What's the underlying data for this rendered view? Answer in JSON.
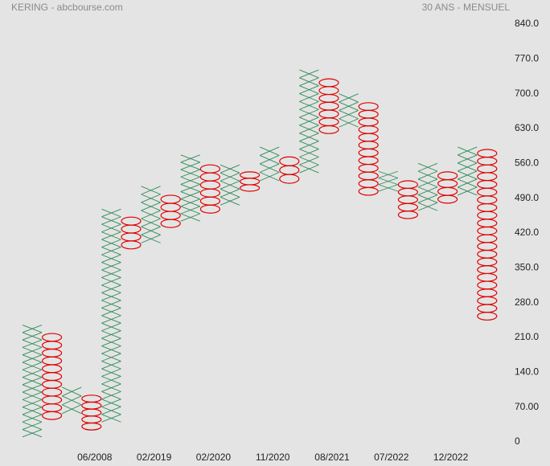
{
  "chart_data": {
    "type": "point-and-figure",
    "title": "KERING - abcbourse.com",
    "subtitle": "30 ANS - MENSUEL",
    "x_color": "#2e8b57",
    "o_color": "#e00000",
    "ylim": [
      0,
      840
    ],
    "yticks": [
      {
        "value": 840,
        "label": "840.0"
      },
      {
        "value": 770,
        "label": "770.0"
      },
      {
        "value": 700,
        "label": "700.0"
      },
      {
        "value": 630,
        "label": "630.0"
      },
      {
        "value": 560,
        "label": "560.0"
      },
      {
        "value": 490,
        "label": "490.0"
      },
      {
        "value": 420,
        "label": "420.0"
      },
      {
        "value": 350,
        "label": "350.0"
      },
      {
        "value": 280,
        "label": "280.0"
      },
      {
        "value": 210,
        "label": "210.0"
      },
      {
        "value": 140,
        "label": "140.0"
      },
      {
        "value": 70,
        "label": "70.00"
      },
      0
    ],
    "categories": [
      null,
      null,
      null,
      "06/2008",
      null,
      null,
      "02/2019",
      null,
      null,
      "02/2020",
      null,
      null,
      "11/2020",
      null,
      null,
      "08/2021",
      null,
      null,
      "07/2022",
      null,
      null,
      "12/2022",
      null,
      null
    ],
    "columns": [
      {
        "kind": "X",
        "low": 10,
        "high": 235
      },
      {
        "kind": "O",
        "low": 45,
        "high": 218
      },
      {
        "kind": "X",
        "low": 57,
        "high": 110
      },
      {
        "kind": "O",
        "low": 24,
        "high": 94
      },
      {
        "kind": "X",
        "low": 40,
        "high": 468
      },
      {
        "kind": "O",
        "low": 388,
        "high": 452
      },
      {
        "kind": "X",
        "low": 400,
        "high": 514
      },
      {
        "kind": "O",
        "low": 431,
        "high": 496
      },
      {
        "kind": "X",
        "low": 444,
        "high": 577
      },
      {
        "kind": "O",
        "low": 460,
        "high": 557
      },
      {
        "kind": "X",
        "low": 476,
        "high": 557
      },
      {
        "kind": "O",
        "low": 504,
        "high": 543
      },
      {
        "kind": "X",
        "low": 525,
        "high": 593
      },
      {
        "kind": "O",
        "low": 520,
        "high": 573
      },
      {
        "kind": "X",
        "low": 541,
        "high": 748
      },
      {
        "kind": "O",
        "low": 620,
        "high": 730
      },
      {
        "kind": "X",
        "low": 633,
        "high": 700
      },
      {
        "kind": "O",
        "low": 496,
        "high": 682
      },
      {
        "kind": "X",
        "low": 504,
        "high": 544
      },
      {
        "kind": "O",
        "low": 449,
        "high": 525
      },
      {
        "kind": "X",
        "low": 465,
        "high": 560
      },
      {
        "kind": "O",
        "low": 480,
        "high": 543
      },
      {
        "kind": "X",
        "low": 496,
        "high": 593
      },
      {
        "kind": "O",
        "low": 245,
        "high": 588
      }
    ]
  }
}
